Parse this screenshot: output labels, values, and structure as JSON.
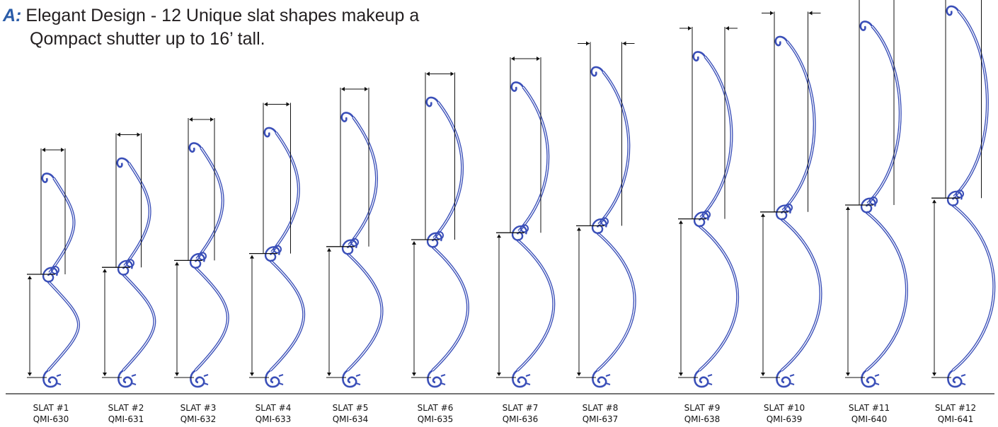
{
  "heading": {
    "marker": "A:",
    "line1": "Elegant Design - 12 Unique slat shapes makeup a",
    "line2": "Qompact shutter up to 16’ tall."
  },
  "colors": {
    "slat_profile": "#3a4fb8",
    "dimension_lines": "#111111",
    "heading_marker": "#2a5ca8",
    "heading_text": "#231f20"
  },
  "slats": [
    {
      "name": "SLAT #1",
      "part": "QMI-630"
    },
    {
      "name": "SLAT #2",
      "part": "QMI-631"
    },
    {
      "name": "SLAT #3",
      "part": "QMI-632"
    },
    {
      "name": "SLAT #4",
      "part": "QMI-633"
    },
    {
      "name": "SLAT #5",
      "part": "QMI-634"
    },
    {
      "name": "SLAT #6",
      "part": "QMI-635"
    },
    {
      "name": "SLAT #7",
      "part": "QMI-636"
    },
    {
      "name": "SLAT #8",
      "part": "QMI-637"
    },
    {
      "name": "SLAT #9",
      "part": "QMI-638"
    },
    {
      "name": "SLAT #10",
      "part": "QMI-639"
    },
    {
      "name": "SLAT #11",
      "part": "QMI-640"
    },
    {
      "name": "SLAT #12",
      "part": "QMI-641"
    }
  ]
}
